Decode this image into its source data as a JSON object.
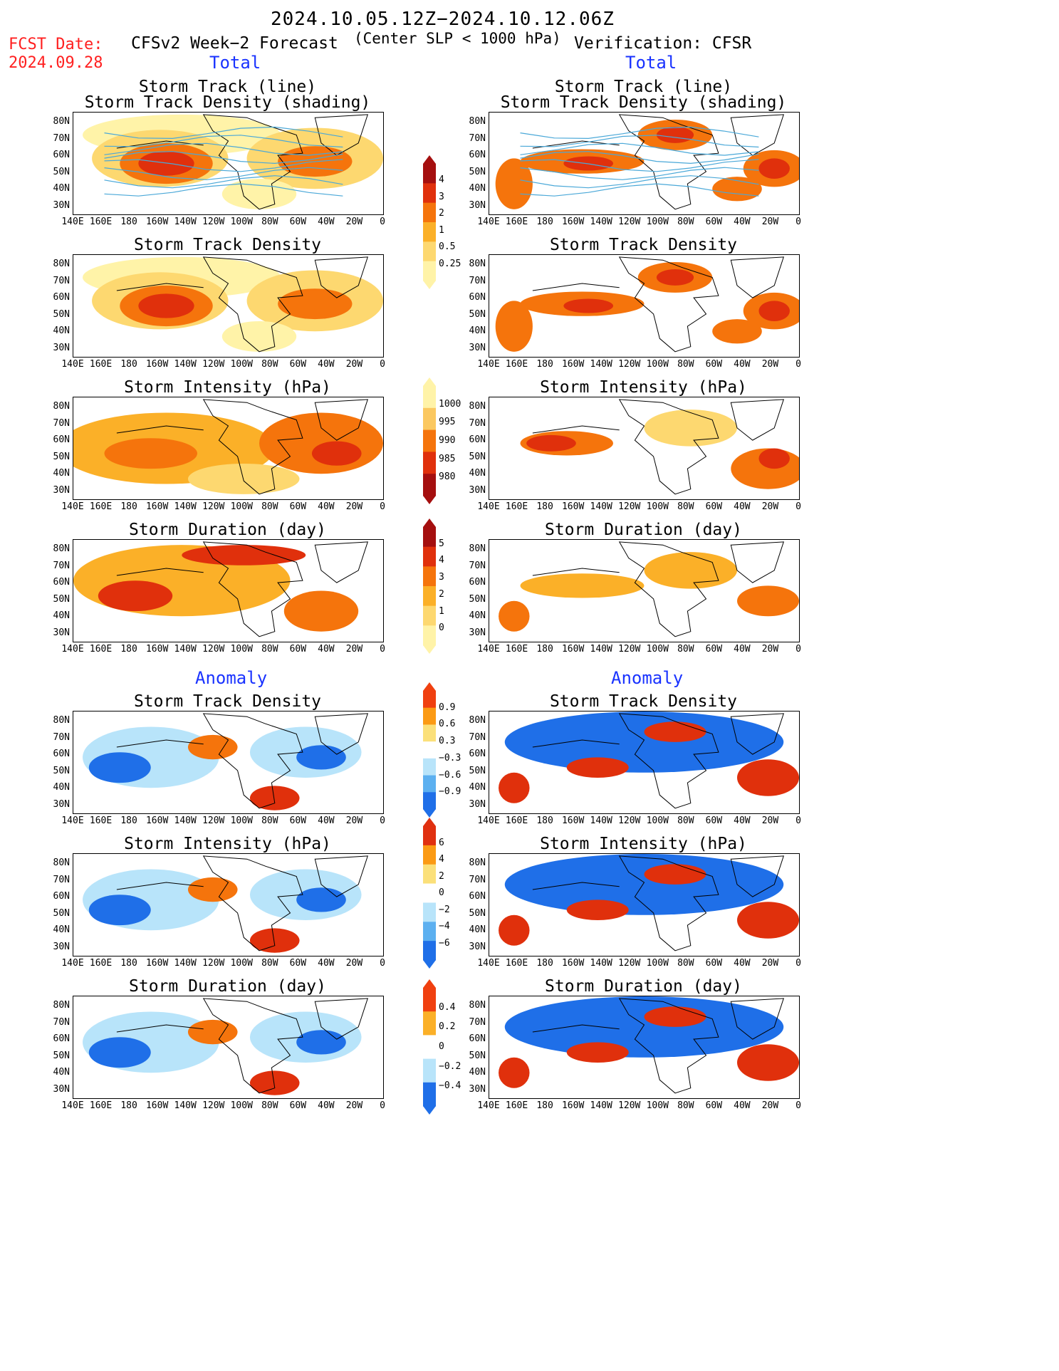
{
  "header": {
    "date_range": "2024.10.05.12Z−2024.10.12.06Z",
    "subtitle": "(Center SLP < 1000 hPa)",
    "fcst_label": "FCST Date:",
    "fcst_date": "2024.09.28",
    "left_model": "CFSv2 Week−2 Forecast",
    "right_model": "Verification: CFSR",
    "total_left": "Total",
    "total_right": "Total",
    "anomaly_left": "Anomaly",
    "anomaly_right": "Anomaly"
  },
  "panel_titles": {
    "track_line": "Storm Track (line)",
    "track_shading": "Storm Track Density (shading)",
    "density": "Storm Track Density",
    "intensity": "Storm Intensity (hPa)",
    "duration": "Storm Duration (day)"
  },
  "axes": {
    "y_ticks": [
      "80N",
      "70N",
      "60N",
      "50N",
      "40N",
      "30N"
    ],
    "x_ticks": [
      "140E",
      "160E",
      "180",
      "160W",
      "140W",
      "120W",
      "100W",
      "80W",
      "60W",
      "40W",
      "20W",
      "0"
    ]
  },
  "colorbars": {
    "density": {
      "labels": [
        "4",
        "3",
        "2",
        "1",
        "0.5",
        "0.25"
      ],
      "colors": [
        "#a50f0f",
        "#e0300c",
        "#f5740c",
        "#fbb028",
        "#fdd870",
        "#fff3a8"
      ]
    },
    "intensity": {
      "labels": [
        "1000",
        "995",
        "990",
        "985",
        "980"
      ],
      "colors": [
        "#fff3a8",
        "#fbc860",
        "#f5740c",
        "#e0300c",
        "#a50f0f"
      ]
    },
    "duration": {
      "labels": [
        "5",
        "4",
        "3",
        "2",
        "1",
        "0"
      ],
      "colors": [
        "#a50f0f",
        "#e0300c",
        "#f5740c",
        "#fbb028",
        "#fdd870",
        "#fff3a8"
      ]
    },
    "anom_density": {
      "labels": [
        "0.9",
        "0.6",
        "0.3",
        "−0.3",
        "−0.6",
        "−0.9"
      ],
      "colors": [
        "#f04010",
        "#fb9a14",
        "#fbe07a",
        "#ffffff",
        "#b8e4fa",
        "#5cb0f0",
        "#1f6fe8"
      ]
    },
    "anom_intensity": {
      "labels": [
        "6",
        "4",
        "2",
        "0",
        "−2",
        "−4",
        "−6"
      ],
      "colors": [
        "#e03010",
        "#fb9a14",
        "#fbe07a",
        "#ffffff",
        "#b8e4fa",
        "#5cb0f0",
        "#1f6fe8"
      ]
    },
    "anom_duration": {
      "labels": [
        "0.4",
        "0.2",
        "0",
        "−0.2",
        "−0.4"
      ],
      "colors": [
        "#f04010",
        "#fbb028",
        "#ffffff",
        "#b8e4fa",
        "#1f6fe8"
      ]
    }
  },
  "colors": {
    "dark_red": "#a50f0f",
    "red": "#e0300c",
    "orange": "#f5740c",
    "light_orange": "#fbb028",
    "yellow": "#fdd870",
    "pale_yellow": "#fff3a8",
    "light_blue": "#b8e4fa",
    "blue": "#1f6fe8",
    "track_line": "#4aa8d8"
  }
}
